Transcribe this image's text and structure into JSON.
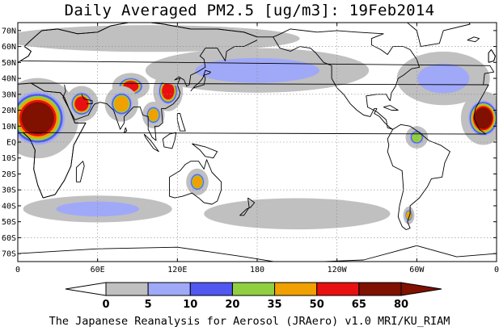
{
  "title": "Daily Averaged PM2.5 [ug/m3]: 19Feb2014",
  "credit": "The Japanese Reanalysis for Aerosol (JRAero) v1.0 MRI/KU_RIAM",
  "map": {
    "lon_range": [
      0,
      360
    ],
    "lat_range": [
      -75,
      75
    ],
    "lat_ticks": [
      "70N",
      "60N",
      "50N",
      "40N",
      "30N",
      "20N",
      "10N",
      "EQ",
      "10S",
      "20S",
      "30S",
      "40S",
      "50S",
      "60S",
      "70S"
    ],
    "lon_ticks": [
      "0",
      "60E",
      "120E",
      "180",
      "120W",
      "60W",
      "0"
    ],
    "gridlines": "dotted",
    "coastlines": true
  },
  "legend": {
    "levels": [
      "0",
      "5",
      "10",
      "20",
      "35",
      "50",
      "65",
      "80"
    ],
    "colors": [
      "#ffffff",
      "#c0c0c0",
      "#a0a8f8",
      "#5058f0",
      "#90d040",
      "#f0a000",
      "#e81010",
      "#801000"
    ],
    "min_arrow_color": "#ffffff",
    "max_arrow_color": "#801000"
  },
  "fields": [
    {
      "name": "sahara-west-africa",
      "lon": 15,
      "lat": 15,
      "rx": 22,
      "ry": 18,
      "level": 7
    },
    {
      "name": "arabian-peninsula",
      "lon": 48,
      "lat": 24,
      "rx": 9,
      "ry": 8,
      "level": 6
    },
    {
      "name": "taklimakan",
      "lon": 85,
      "lat": 35,
      "rx": 10,
      "ry": 6,
      "level": 6
    },
    {
      "name": "east-china",
      "lon": 113,
      "lat": 32,
      "rx": 8,
      "ry": 9,
      "level": 6
    },
    {
      "name": "india",
      "lon": 78,
      "lat": 24,
      "rx": 9,
      "ry": 8,
      "level": 5
    },
    {
      "name": "se-asia",
      "lon": 102,
      "lat": 17,
      "rx": 6,
      "ry": 6,
      "level": 5
    },
    {
      "name": "australia",
      "lon": 135,
      "lat": -25,
      "rx": 6,
      "ry": 6,
      "level": 5
    },
    {
      "name": "amazon",
      "lon": 300,
      "lat": 3,
      "rx": 6,
      "ry": 5,
      "level": 4
    },
    {
      "name": "patagonia",
      "lon": 294,
      "lat": -46,
      "rx": 3,
      "ry": 4,
      "level": 5
    },
    {
      "name": "nw-africa-edge",
      "lon": 350,
      "lat": 15,
      "rx": 12,
      "ry": 12,
      "level": 7
    },
    {
      "name": "north-pacific-band",
      "lon": 180,
      "lat": 45,
      "rx": 60,
      "ry": 10,
      "level": 2
    },
    {
      "name": "south-indian-band",
      "lon": 60,
      "lat": -42,
      "rx": 40,
      "ry": 6,
      "level": 2
    },
    {
      "name": "south-pacific-band",
      "lon": 210,
      "lat": -45,
      "rx": 50,
      "ry": 7,
      "level": 1
    },
    {
      "name": "north-atlantic",
      "lon": 320,
      "lat": 40,
      "rx": 25,
      "ry": 12,
      "level": 2
    },
    {
      "name": "arctic-belt",
      "lon": 100,
      "lat": 65,
      "rx": 80,
      "ry": 6,
      "level": 1
    }
  ]
}
